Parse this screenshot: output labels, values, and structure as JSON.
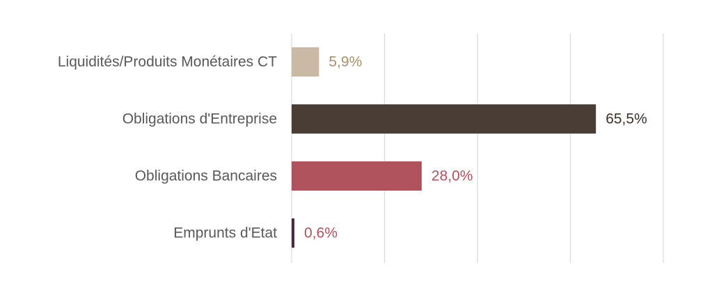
{
  "chart_data": {
    "type": "bar",
    "orientation": "horizontal",
    "title": "",
    "xlabel": "",
    "ylabel": "",
    "xlim": [
      0,
      80
    ],
    "grid": true,
    "legend": "none",
    "categories": [
      "Liquidités/Produits Monétaires CT",
      "Obligations d'Entreprise",
      "Obligations Bancaires",
      "Emprunts d'Etat"
    ],
    "values": [
      5.9,
      65.5,
      28.0,
      0.6
    ],
    "value_labels": [
      "5,9%",
      "65,5%",
      "28,0%",
      "0,6%"
    ],
    "bar_colors": [
      "#c8baa5",
      "#4a3d34",
      "#b0525c",
      "#4a2a3c"
    ],
    "label_colors": [
      "#a8926a",
      "#3a322c",
      "#b0525c",
      "#b0525c"
    ]
  }
}
